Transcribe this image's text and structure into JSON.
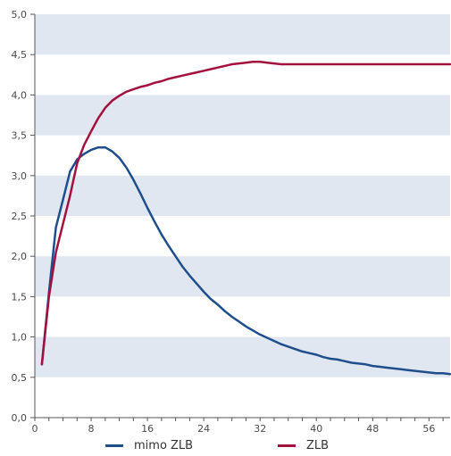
{
  "chart_data": {
    "type": "line",
    "title": "",
    "xlabel": "",
    "ylabel": "",
    "xlim": [
      0,
      59
    ],
    "ylim": [
      0,
      5
    ],
    "xticks": [
      0,
      8,
      16,
      24,
      32,
      40,
      48,
      56
    ],
    "xtick_labels": [
      "0",
      "8",
      "16",
      "24",
      "32",
      "40",
      "48",
      "56"
    ],
    "yticks": [
      0,
      0.5,
      1,
      1.5,
      2,
      2.5,
      3,
      3.5,
      4,
      4.5,
      5
    ],
    "ytick_labels": [
      "0,0",
      "0,5",
      "1,0",
      "1,5",
      "2,0",
      "2,5",
      "3,0",
      "3,5",
      "4,0",
      "4,5",
      "5,0"
    ],
    "background_bands": true,
    "band_color": "#e1e7f0",
    "legend_position": "bottom",
    "series": [
      {
        "name": "mimo ZLB",
        "color": "#1f4e8c",
        "x": [
          1,
          2,
          3,
          4,
          5,
          6,
          7,
          8,
          9,
          10,
          11,
          12,
          13,
          14,
          15,
          16,
          17,
          18,
          19,
          20,
          21,
          22,
          23,
          24,
          25,
          26,
          27,
          28,
          29,
          30,
          31,
          32,
          33,
          34,
          35,
          36,
          37,
          38,
          39,
          40,
          41,
          42,
          43,
          44,
          45,
          46,
          47,
          48,
          49,
          50,
          51,
          52,
          53,
          54,
          55,
          56,
          57,
          58,
          59
        ],
        "values": [
          0.66,
          1.55,
          2.36,
          2.7,
          3.05,
          3.2,
          3.27,
          3.32,
          3.35,
          3.35,
          3.3,
          3.22,
          3.1,
          2.95,
          2.78,
          2.6,
          2.43,
          2.27,
          2.13,
          2.0,
          1.87,
          1.76,
          1.66,
          1.56,
          1.47,
          1.4,
          1.32,
          1.25,
          1.19,
          1.13,
          1.08,
          1.03,
          0.99,
          0.95,
          0.91,
          0.88,
          0.85,
          0.82,
          0.8,
          0.78,
          0.75,
          0.73,
          0.72,
          0.7,
          0.68,
          0.67,
          0.66,
          0.64,
          0.63,
          0.62,
          0.61,
          0.6,
          0.59,
          0.58,
          0.57,
          0.56,
          0.55,
          0.55,
          0.54
        ]
      },
      {
        "name": "ZLB",
        "color": "#a3113f",
        "x": [
          1,
          2,
          3,
          4,
          5,
          6,
          7,
          8,
          9,
          10,
          11,
          12,
          13,
          14,
          15,
          16,
          17,
          18,
          19,
          20,
          21,
          22,
          23,
          24,
          25,
          26,
          27,
          28,
          29,
          30,
          31,
          32,
          33,
          34,
          35,
          36,
          37,
          38,
          39,
          40,
          41,
          42,
          43,
          44,
          45,
          46,
          47,
          48,
          49,
          50,
          51,
          52,
          53,
          54,
          55,
          56,
          57,
          58,
          59
        ],
        "values": [
          0.66,
          1.5,
          2.05,
          2.4,
          2.75,
          3.15,
          3.38,
          3.55,
          3.71,
          3.84,
          3.93,
          3.99,
          4.04,
          4.07,
          4.1,
          4.12,
          4.15,
          4.17,
          4.2,
          4.22,
          4.24,
          4.26,
          4.28,
          4.3,
          4.32,
          4.34,
          4.36,
          4.38,
          4.39,
          4.4,
          4.41,
          4.41,
          4.4,
          4.39,
          4.38,
          4.38,
          4.38,
          4.38,
          4.38,
          4.38,
          4.38,
          4.38,
          4.38,
          4.38,
          4.38,
          4.38,
          4.38,
          4.38,
          4.38,
          4.38,
          4.38,
          4.38,
          4.38,
          4.38,
          4.38,
          4.38,
          4.38,
          4.38,
          4.38
        ]
      }
    ]
  }
}
